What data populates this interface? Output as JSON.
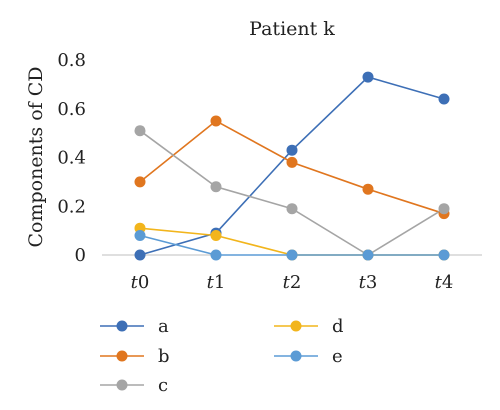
{
  "chart_data": {
    "type": "line",
    "title": "Patient k",
    "ylabel": "Components of CD",
    "xlabel": "",
    "categories": [
      {
        "letter": "t",
        "num": "0"
      },
      {
        "letter": "t",
        "num": "1"
      },
      {
        "letter": "t",
        "num": "2"
      },
      {
        "letter": "t",
        "num": "3"
      },
      {
        "letter": "t",
        "num": "4"
      }
    ],
    "ylim": [
      0,
      0.8
    ],
    "yticks": [
      "0",
      "0.2",
      "0.4",
      "0.6",
      "0.8"
    ],
    "ytick_values": [
      0,
      0.2,
      0.4,
      0.6,
      0.8
    ],
    "grid": false,
    "legend_position": "bottom",
    "series": [
      {
        "name": "a",
        "color": "#3d6fb6",
        "values": [
          0,
          0.09,
          0.43,
          0.73,
          0.64
        ]
      },
      {
        "name": "b",
        "color": "#e0761f",
        "values": [
          0.3,
          0.55,
          0.38,
          0.27,
          0.17
        ]
      },
      {
        "name": "c",
        "color": "#a5a5a5",
        "values": [
          0.51,
          0.28,
          0.19,
          0,
          0.19
        ]
      },
      {
        "name": "d",
        "color": "#f2b51c",
        "values": [
          0.11,
          0.08,
          0,
          0,
          0
        ]
      },
      {
        "name": "e",
        "color": "#5b9bd5",
        "values": [
          0.08,
          0,
          0,
          0,
          0
        ]
      }
    ]
  }
}
